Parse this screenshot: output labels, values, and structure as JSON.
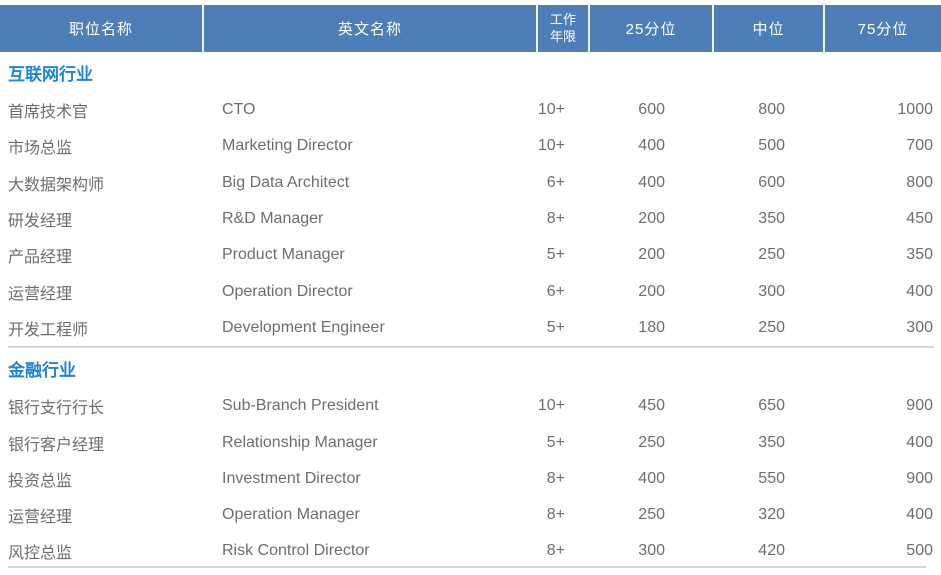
{
  "colors": {
    "header_bg": "#4d7eb7",
    "header_text": "#ffffff",
    "section_title": "#1e87d3",
    "body_text": "#6e6e6e",
    "divider": "#d9d9d9"
  },
  "header": {
    "position_cn": "职位名称",
    "english_name": "英文名称",
    "years_line1": "工作",
    "years_line2": "年限",
    "p25": "25分位",
    "median": "中位",
    "p75": "75分位"
  },
  "sections": [
    {
      "title": "互联网行业",
      "rows": [
        {
          "cn": "首席技术官",
          "en": "CTO",
          "years": "10+",
          "p25": "600",
          "median": "800",
          "p75": "1000"
        },
        {
          "cn": "市场总监",
          "en": "Marketing Director",
          "years": "10+",
          "p25": "400",
          "median": "500",
          "p75": "700"
        },
        {
          "cn": "大数据架构师",
          "en": "Big Data Architect",
          "years": "6+",
          "p25": "400",
          "median": "600",
          "p75": "800"
        },
        {
          "cn": "研发经理",
          "en": "R&D Manager",
          "years": "8+",
          "p25": "200",
          "median": "350",
          "p75": "450"
        },
        {
          "cn": "产品经理",
          "en": "Product Manager",
          "years": "5+",
          "p25": "200",
          "median": "250",
          "p75": "350"
        },
        {
          "cn": "运营经理",
          "en": "Operation Director",
          "years": "6+",
          "p25": "200",
          "median": "300",
          "p75": "400"
        },
        {
          "cn": "开发工程师",
          "en": "Development Engineer",
          "years": "5+",
          "p25": "180",
          "median": "250",
          "p75": "300"
        }
      ]
    },
    {
      "title": "金融行业",
      "rows": [
        {
          "cn": "银行支行行长",
          "en": "Sub-Branch President",
          "years": "10+",
          "p25": "450",
          "median": "650",
          "p75": "900"
        },
        {
          "cn": "银行客户经理",
          "en": "Relationship Manager",
          "years": "5+",
          "p25": "250",
          "median": "350",
          "p75": "400"
        },
        {
          "cn": "投资总监",
          "en": "Investment Director",
          "years": "8+",
          "p25": "400",
          "median": "550",
          "p75": "900"
        },
        {
          "cn": "运营经理",
          "en": "Operation Manager",
          "years": "8+",
          "p25": "250",
          "median": "320",
          "p75": "400"
        },
        {
          "cn": "风控总监",
          "en": "Risk Control Director",
          "years": "8+",
          "p25": "300",
          "median": "420",
          "p75": "500"
        }
      ]
    }
  ]
}
